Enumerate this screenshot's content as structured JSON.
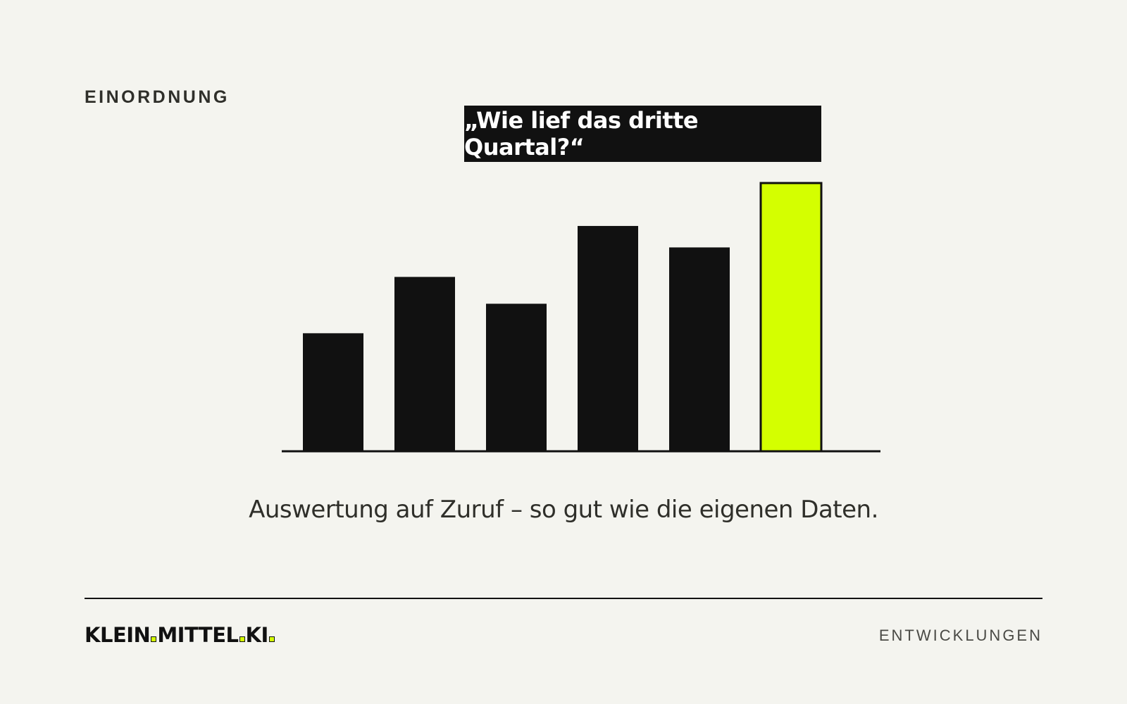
{
  "header": {
    "section_label": "EINORDNUNG"
  },
  "callout": {
    "question": "„Wie lief das dritte Quartal?“"
  },
  "chart_data": {
    "type": "bar",
    "title": "",
    "xlabel": "",
    "ylabel": "",
    "categories": [
      "",
      "",
      "",
      "",
      "",
      ""
    ],
    "values": [
      44,
      65,
      55,
      84,
      76,
      100
    ],
    "highlight_index": 5,
    "ylim": [
      0,
      100
    ],
    "grid": false,
    "legend": "none",
    "colors": {
      "bar": "#111111",
      "highlight": "#d4ff00",
      "highlight_border": "#111111",
      "axis": "#111111"
    }
  },
  "caption": "Auswertung auf Zuruf – so gut wie die eigenen Daten.",
  "footer": {
    "logo_parts": [
      "KLEIN",
      "MITTEL",
      "KI"
    ],
    "accent_color": "#d4ff00",
    "right_label": "ENTWICKLUNGEN"
  }
}
